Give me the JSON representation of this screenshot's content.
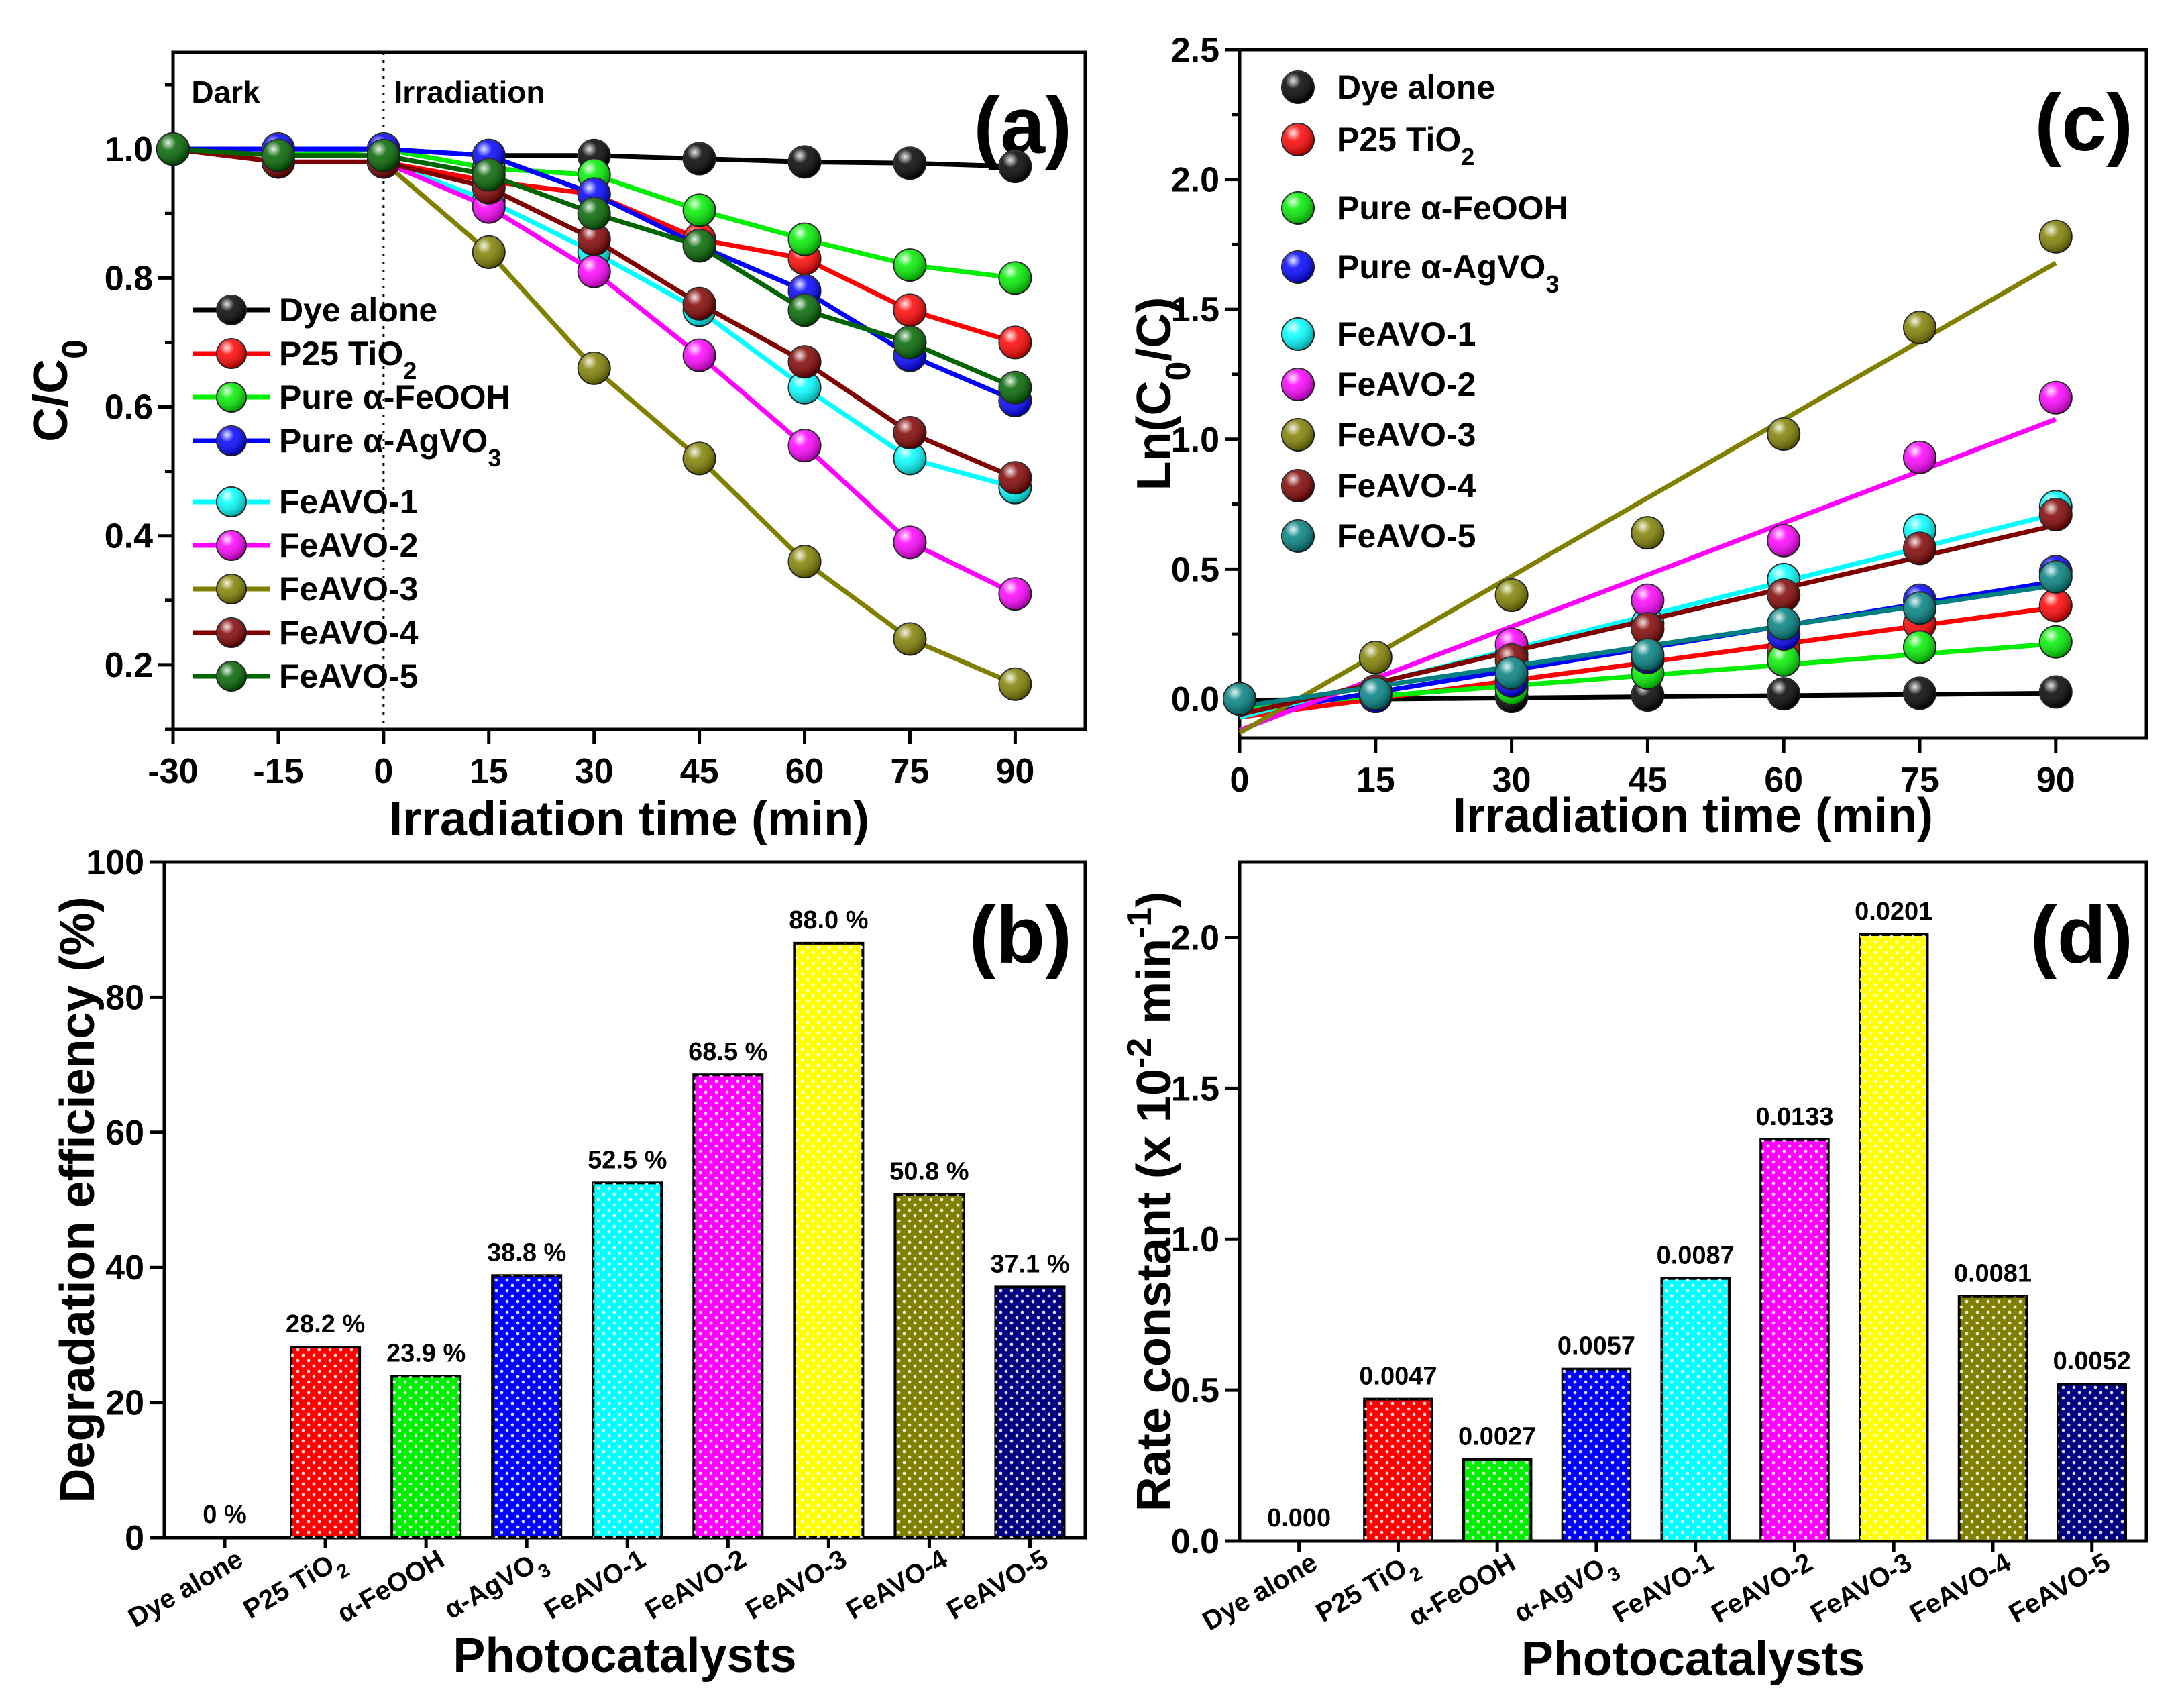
{
  "colors": {
    "Dye alone": "#000000",
    "P25 TiO2": "#ff0000",
    "Pure α-FeOOH": "#00ee00",
    "Pure α-AgVO3": "#0000ff",
    "FeAVO-1": "#00ffff",
    "FeAVO-2": "#ff00ff",
    "FeAVO-3": "#808000",
    "FeAVO-4": "#800000",
    "FeAVO-5": "#006400",
    "FeAVO-5-c": "#008080",
    "bar_yellow": "#ffff00",
    "bar_navy": "#000080"
  },
  "chart_data": [
    {
      "panel": "(a)",
      "type": "line",
      "xlabel": "Irradiation time (min)",
      "ylabel": "C/C0",
      "xlim": [
        -30,
        100
      ],
      "ylim": [
        0.1,
        1.15
      ],
      "xticks": [
        "-30",
        "-15",
        "0",
        "15",
        "30",
        "45",
        "60",
        "75",
        "90"
      ],
      "yticks": [
        "0.2",
        "0.4",
        "0.6",
        "0.8",
        "1.0"
      ],
      "annotations": [
        "Dark",
        "Irradiation"
      ],
      "x": [
        -30,
        -15,
        0,
        15,
        30,
        45,
        60,
        75,
        90
      ],
      "series": [
        {
          "name": "Dye alone",
          "values": [
            1.0,
            1.0,
            1.0,
            0.99,
            0.99,
            0.985,
            0.98,
            0.978,
            0.973
          ]
        },
        {
          "name": "P25 TiO2",
          "values": [
            1.0,
            0.98,
            0.98,
            0.95,
            0.93,
            0.86,
            0.83,
            0.75,
            0.7
          ]
        },
        {
          "name": "Pure α-FeOOH",
          "values": [
            1.0,
            0.99,
            1.0,
            0.97,
            0.96,
            0.905,
            0.86,
            0.82,
            0.8
          ]
        },
        {
          "name": "Pure α-AgVO3",
          "values": [
            1.0,
            1.0,
            1.0,
            0.99,
            0.93,
            0.85,
            0.78,
            0.68,
            0.61
          ]
        },
        {
          "name": "FeAVO-1",
          "values": [
            1.0,
            0.98,
            0.98,
            0.92,
            0.84,
            0.75,
            0.63,
            0.52,
            0.475
          ]
        },
        {
          "name": "FeAVO-2",
          "values": [
            1.0,
            0.98,
            0.98,
            0.91,
            0.81,
            0.68,
            0.54,
            0.39,
            0.31
          ]
        },
        {
          "name": "FeAVO-3",
          "values": [
            1.0,
            0.98,
            0.98,
            0.84,
            0.66,
            0.52,
            0.36,
            0.24,
            0.17
          ]
        },
        {
          "name": "FeAVO-4",
          "values": [
            1.0,
            0.98,
            0.98,
            0.94,
            0.86,
            0.76,
            0.67,
            0.56,
            0.49
          ]
        },
        {
          "name": "FeAVO-5",
          "values": [
            1.0,
            0.99,
            0.99,
            0.96,
            0.9,
            0.85,
            0.75,
            0.7,
            0.63
          ]
        }
      ]
    },
    {
      "panel": "(c)",
      "type": "scatter",
      "xlabel": "Irradiation time (min)",
      "ylabel": "Ln(C0/C)",
      "xlim": [
        0,
        100
      ],
      "ylim": [
        -0.15,
        2.5
      ],
      "xticks": [
        "0",
        "15",
        "30",
        "45",
        "60",
        "75",
        "90"
      ],
      "yticks": [
        "0.0",
        "0.5",
        "1.0",
        "1.5",
        "2.0",
        "2.5"
      ],
      "x": [
        0,
        15,
        30,
        45,
        60,
        75,
        90
      ],
      "series": [
        {
          "name": "Dye alone",
          "values": [
            0,
            0.01,
            0.01,
            0.015,
            0.02,
            0.022,
            0.027
          ],
          "fit": [
            -0.005,
            0.0003
          ]
        },
        {
          "name": "P25 TiO2",
          "values": [
            0,
            0.02,
            0.07,
            0.15,
            0.19,
            0.29,
            0.36
          ],
          "fit": [
            -0.07,
            0.0047
          ]
        },
        {
          "name": "Pure α-FeOOH",
          "values": [
            0,
            0.02,
            0.04,
            0.1,
            0.15,
            0.2,
            0.22
          ],
          "fit": [
            -0.03,
            0.0027
          ]
        },
        {
          "name": "Pure α-AgVO3",
          "values": [
            0,
            0.01,
            0.07,
            0.16,
            0.25,
            0.38,
            0.49
          ],
          "fit": [
            -0.06,
            0.0057
          ]
        },
        {
          "name": "FeAVO-1",
          "values": [
            0,
            0.03,
            0.17,
            0.29,
            0.46,
            0.65,
            0.74
          ],
          "fit": [
            -0.07,
            0.0087
          ]
        },
        {
          "name": "FeAVO-2",
          "values": [
            0,
            0.03,
            0.21,
            0.38,
            0.61,
            0.93,
            1.16
          ],
          "fit": [
            -0.12,
            0.0133
          ]
        },
        {
          "name": "FeAVO-3",
          "values": [
            0,
            0.16,
            0.4,
            0.64,
            1.02,
            1.43,
            1.78
          ],
          "fit": [
            -0.13,
            0.0201
          ]
        },
        {
          "name": "FeAVO-4",
          "values": [
            0,
            0.03,
            0.15,
            0.27,
            0.4,
            0.58,
            0.71
          ],
          "fit": [
            -0.06,
            0.0081
          ]
        },
        {
          "name": "FeAVO-5",
          "values": [
            0,
            0.02,
            0.1,
            0.17,
            0.29,
            0.35,
            0.47
          ],
          "fit": [
            -0.03,
            0.0052
          ]
        }
      ]
    },
    {
      "panel": "(b)",
      "type": "bar",
      "xlabel": "Photocatalysts",
      "ylabel": "Degradation efficiency (%)",
      "ylim": [
        0,
        100
      ],
      "yticks": [
        "0",
        "20",
        "40",
        "60",
        "80",
        "100"
      ],
      "categories": [
        "Dye alone",
        "P25 TiO2",
        "α-FeOOH",
        "α-AgVO3",
        "FeAVO-1",
        "FeAVO-2",
        "FeAVO-3",
        "FeAVO-4",
        "FeAVO-5"
      ],
      "values": [
        0,
        28.2,
        23.9,
        38.8,
        52.5,
        68.5,
        88.0,
        50.8,
        37.1
      ],
      "labels": [
        "0 %",
        "28.2 %",
        "23.9 %",
        "38.8 %",
        "52.5 %",
        "68.5 %",
        "88.0 %",
        "50.8 %",
        "37.1 %"
      ]
    },
    {
      "panel": "(d)",
      "type": "bar",
      "xlabel": "Photocatalysts",
      "ylabel": "Rate constant (x 10-2 min-1)",
      "ylim": [
        0,
        2.25
      ],
      "yticks": [
        "0.0",
        "0.5",
        "1.0",
        "1.5",
        "2.0"
      ],
      "categories": [
        "Dye alone",
        "P25 TiO2",
        "α-FeOOH",
        "α-AgVO3",
        "FeAVO-1",
        "FeAVO-2",
        "FeAVO-3",
        "FeAVO-4",
        "FeAVO-5"
      ],
      "values": [
        0.0,
        0.47,
        0.27,
        0.57,
        0.87,
        1.33,
        2.01,
        0.81,
        0.52
      ],
      "labels": [
        "0.000",
        "0.0047",
        "0.0027",
        "0.0057",
        "0.0087",
        "0.0133",
        "0.0201",
        "0.0081",
        "0.0052"
      ]
    }
  ]
}
